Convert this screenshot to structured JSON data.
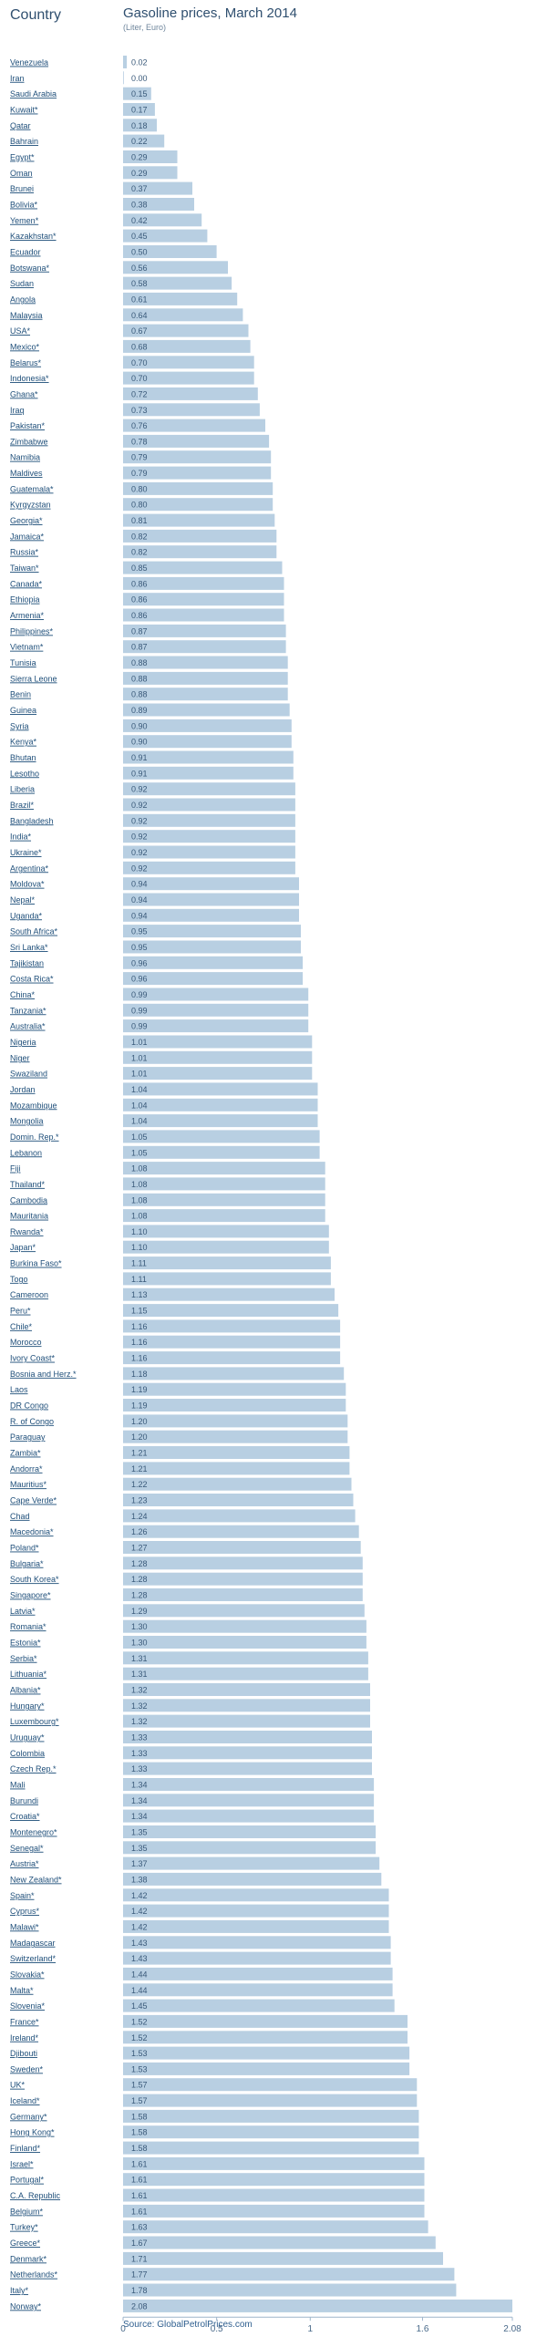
{
  "header": {
    "column_label": "Country",
    "title": "Gasoline prices, March 2014",
    "subtitle": "(Liter, Euro)"
  },
  "source": "Source: GlobalPetrolPrices.com",
  "colors": {
    "bar": "#b8cfe2",
    "label": "#1f4f7a",
    "axis": "#9fb6cc"
  },
  "chart_data": {
    "type": "bar",
    "orientation": "horizontal",
    "xlim": [
      0,
      2.08
    ],
    "xticks": [
      "0",
      "0.5",
      "1",
      "1.6",
      "2.08"
    ],
    "xtick_values": [
      0,
      0.5,
      1,
      1.6,
      2.08
    ],
    "grid": false,
    "categories": [
      "Venezuela",
      "Iran",
      "Saudi Arabia",
      "Kuwait*",
      "Qatar",
      "Bahrain",
      "Egypt*",
      "Oman",
      "Brunei",
      "Bolivia*",
      "Yemen*",
      "Kazakhstan*",
      "Ecuador",
      "Botswana*",
      "Sudan",
      "Angola",
      "Malaysia",
      "USA*",
      "Mexico*",
      "Belarus*",
      "Indonesia*",
      "Ghana*",
      "Iraq",
      "Pakistan*",
      "Zimbabwe",
      "Namibia",
      "Maldives",
      "Guatemala*",
      "Kyrgyzstan",
      "Georgia*",
      "Jamaica*",
      "Russia*",
      "Taiwan*",
      "Canada*",
      "Ethiopia",
      "Armenia*",
      "Philippines*",
      "Vietnam*",
      "Tunisia",
      "Sierra Leone",
      "Benin",
      "Guinea",
      "Syria",
      "Kenya*",
      "Bhutan",
      "Lesotho",
      "Liberia",
      "Brazil*",
      "Bangladesh",
      "India*",
      "Ukraine*",
      "Argentina*",
      "Moldova*",
      "Nepal*",
      "Uganda*",
      "South Africa*",
      "Sri Lanka*",
      "Tajikistan",
      "Costa Rica*",
      "China*",
      "Tanzania*",
      "Australia*",
      "Nigeria",
      "Niger",
      "Swaziland",
      "Jordan",
      "Mozambique",
      "Mongolia",
      "Domin. Rep.*",
      "Lebanon",
      "Fiji",
      "Thailand*",
      "Cambodia",
      "Mauritania",
      "Rwanda*",
      "Japan*",
      "Burkina Faso*",
      "Togo",
      "Cameroon",
      "Peru*",
      "Chile*",
      "Morocco",
      "Ivory Coast*",
      "Bosnia and Herz.*",
      "Laos",
      "DR Congo",
      "R. of Congo",
      "Paraguay",
      "Zambia*",
      "Andorra*",
      "Mauritius*",
      "Cape Verde*",
      "Chad",
      "Macedonia*",
      "Poland*",
      "Bulgaria*",
      "South Korea*",
      "Singapore*",
      "Latvia*",
      "Romania*",
      "Estonia*",
      "Serbia*",
      "Lithuania*",
      "Albania*",
      "Hungary*",
      "Luxembourg*",
      "Uruguay*",
      "Colombia",
      "Czech Rep.*",
      "Mali",
      "Burundi",
      "Croatia*",
      "Montenegro*",
      "Senegal*",
      "Austria*",
      "New Zealand*",
      "Spain*",
      "Cyprus*",
      "Malawi*",
      "Madagascar",
      "Switzerland*",
      "Slovakia*",
      "Malta*",
      "Slovenia*",
      "France*",
      "Ireland*",
      "Djibouti",
      "Sweden*",
      "UK*",
      "Iceland*",
      "Germany*",
      "Hong Kong*",
      "Finland*",
      "Israel*",
      "Portugal*",
      "C.A. Republic",
      "Belgium*",
      "Turkey*",
      "Greece*",
      "Denmark*",
      "Netherlands*",
      "Italy*",
      "Norway*"
    ],
    "values": [
      0.02,
      0.0,
      0.15,
      0.17,
      0.18,
      0.22,
      0.29,
      0.29,
      0.37,
      0.38,
      0.42,
      0.45,
      0.5,
      0.56,
      0.58,
      0.61,
      0.64,
      0.67,
      0.68,
      0.7,
      0.7,
      0.72,
      0.73,
      0.76,
      0.78,
      0.79,
      0.79,
      0.8,
      0.8,
      0.81,
      0.82,
      0.82,
      0.85,
      0.86,
      0.86,
      0.86,
      0.87,
      0.87,
      0.88,
      0.88,
      0.88,
      0.89,
      0.9,
      0.9,
      0.91,
      0.91,
      0.92,
      0.92,
      0.92,
      0.92,
      0.92,
      0.92,
      0.94,
      0.94,
      0.94,
      0.95,
      0.95,
      0.96,
      0.96,
      0.99,
      0.99,
      0.99,
      1.01,
      1.01,
      1.01,
      1.04,
      1.04,
      1.04,
      1.05,
      1.05,
      1.08,
      1.08,
      1.08,
      1.08,
      1.1,
      1.1,
      1.11,
      1.11,
      1.13,
      1.15,
      1.16,
      1.16,
      1.16,
      1.18,
      1.19,
      1.19,
      1.2,
      1.2,
      1.21,
      1.21,
      1.22,
      1.23,
      1.24,
      1.26,
      1.27,
      1.28,
      1.28,
      1.28,
      1.29,
      1.3,
      1.3,
      1.31,
      1.31,
      1.32,
      1.32,
      1.32,
      1.33,
      1.33,
      1.33,
      1.34,
      1.34,
      1.34,
      1.35,
      1.35,
      1.37,
      1.38,
      1.42,
      1.42,
      1.42,
      1.43,
      1.43,
      1.44,
      1.44,
      1.45,
      1.52,
      1.52,
      1.53,
      1.53,
      1.57,
      1.57,
      1.58,
      1.58,
      1.58,
      1.61,
      1.61,
      1.61,
      1.61,
      1.63,
      1.67,
      1.71,
      1.77,
      1.78,
      2.08
    ],
    "value_labels": [
      "0.02",
      "0.00",
      "0.15",
      "0.17",
      "0.18",
      "0.22",
      "0.29",
      "0.29",
      "0.37",
      "0.38",
      "0.42",
      "0.45",
      "0.50",
      "0.56",
      "0.58",
      "0.61",
      "0.64",
      "0.67",
      "0.68",
      "0.70",
      "0.70",
      "0.72",
      "0.73",
      "0.76",
      "0.78",
      "0.79",
      "0.79",
      "0.80",
      "0.80",
      "0.81",
      "0.82",
      "0.82",
      "0.85",
      "0.86",
      "0.86",
      "0.86",
      "0.87",
      "0.87",
      "0.88",
      "0.88",
      "0.88",
      "0.89",
      "0.90",
      "0.90",
      "0.91",
      "0.91",
      "0.92",
      "0.92",
      "0.92",
      "0.92",
      "0.92",
      "0.92",
      "0.94",
      "0.94",
      "0.94",
      "0.95",
      "0.95",
      "0.96",
      "0.96",
      "0.99",
      "0.99",
      "0.99",
      "1.01",
      "1.01",
      "1.01",
      "1.04",
      "1.04",
      "1.04",
      "1.05",
      "1.05",
      "1.08",
      "1.08",
      "1.08",
      "1.08",
      "1.10",
      "1.10",
      "1.11",
      "1.11",
      "1.13",
      "1.15",
      "1.16",
      "1.16",
      "1.16",
      "1.18",
      "1.19",
      "1.19",
      "1.20",
      "1.20",
      "1.21",
      "1.21",
      "1.22",
      "1.23",
      "1.24",
      "1.26",
      "1.27",
      "1.28",
      "1.28",
      "1.28",
      "1.29",
      "1.30",
      "1.30",
      "1.31",
      "1.31",
      "1.32",
      "1.32",
      "1.32",
      "1.33",
      "1.33",
      "1.33",
      "1.34",
      "1.34",
      "1.34",
      "1.35",
      "1.35",
      "1.37",
      "1.38",
      "1.42",
      "1.42",
      "1.42",
      "1.43",
      "1.43",
      "1.44",
      "1.44",
      "1.45",
      "1.52",
      "1.52",
      "1.53",
      "1.53",
      "1.57",
      "1.57",
      "1.58",
      "1.58",
      "1.58",
      "1.61",
      "1.61",
      "1.61",
      "1.61",
      "1.63",
      "1.67",
      "1.71",
      "1.77",
      "1.78",
      "2.08"
    ]
  }
}
